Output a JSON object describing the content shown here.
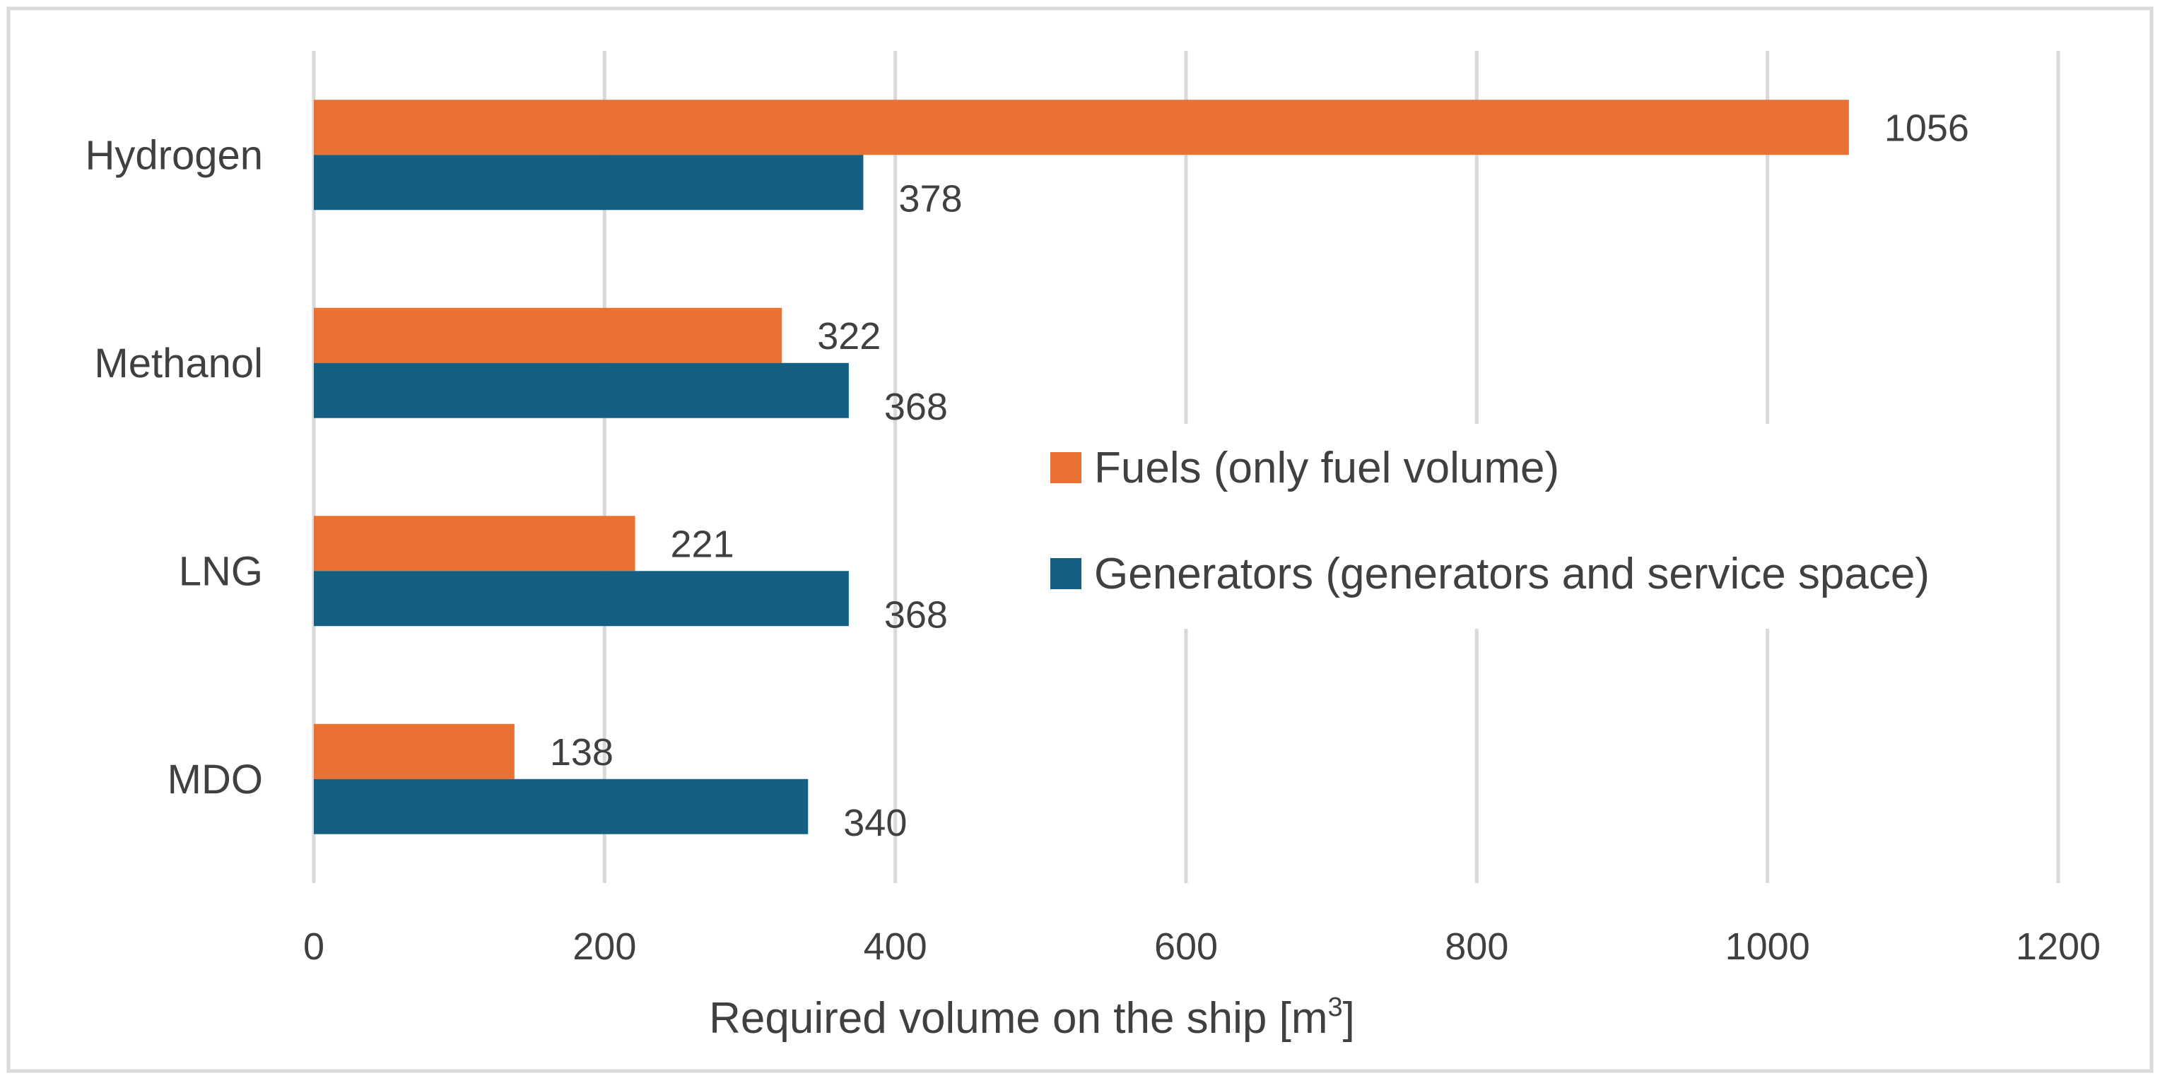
{
  "chart_data": {
    "type": "bar",
    "orientation": "horizontal",
    "title": "",
    "categories": [
      "Hydrogen",
      "Methanol",
      "LNG",
      "MDO"
    ],
    "series": [
      {
        "name": "Fuels (only fuel volume)",
        "color": "#E97132",
        "values": [
          1056,
          322,
          221,
          138
        ]
      },
      {
        "name": "Generators (generators and service space)",
        "color": "#156082",
        "values": [
          378,
          368,
          368,
          340
        ]
      }
    ],
    "xlabel_main": "Required volume on the ship [m",
    "xlabel_superscript": "3",
    "xlabel_end": "]",
    "ylabel": "",
    "xlim": [
      0,
      1200
    ],
    "xticks": [
      0,
      200,
      400,
      600,
      800,
      1000,
      1200
    ],
    "grid": true,
    "legend_position": "right-center",
    "border_color": "#D9D9D9",
    "grid_color": "#D9D9D9"
  }
}
